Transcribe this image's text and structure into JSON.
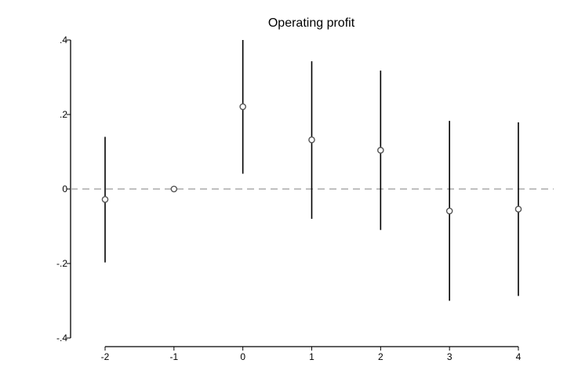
{
  "chart_data": {
    "type": "scatter",
    "title": "Operating profit",
    "xlabel": "",
    "ylabel": "",
    "x_ticks": [
      "-2",
      "-1",
      "0",
      "1",
      "2",
      "3",
      "4"
    ],
    "y_ticks": [
      ".4",
      ".2",
      "0",
      "-.2",
      "-.4"
    ],
    "xlim": [
      -2,
      4
    ],
    "ylim": [
      -0.4,
      0.4
    ],
    "reference_line": {
      "y": 0,
      "style": "dashed",
      "color": "#999999"
    },
    "grid": false,
    "legend": "none",
    "points": [
      {
        "x": -2,
        "y": -0.028,
        "ci_low": -0.197,
        "ci_high": 0.14
      },
      {
        "x": -1,
        "y": 0.0,
        "ci_low": null,
        "ci_high": null
      },
      {
        "x": 0,
        "y": 0.221,
        "ci_low": 0.041,
        "ci_high": 0.4
      },
      {
        "x": 1,
        "y": 0.132,
        "ci_low": -0.08,
        "ci_high": 0.343
      },
      {
        "x": 2,
        "y": 0.104,
        "ci_low": -0.11,
        "ci_high": 0.318
      },
      {
        "x": 3,
        "y": -0.059,
        "ci_low": -0.3,
        "ci_high": 0.183
      },
      {
        "x": 4,
        "y": -0.054,
        "ci_low": -0.287,
        "ci_high": 0.179
      }
    ],
    "colors": {
      "marker": "#555555",
      "errorbar": "#000000",
      "axis": "#000000"
    }
  }
}
